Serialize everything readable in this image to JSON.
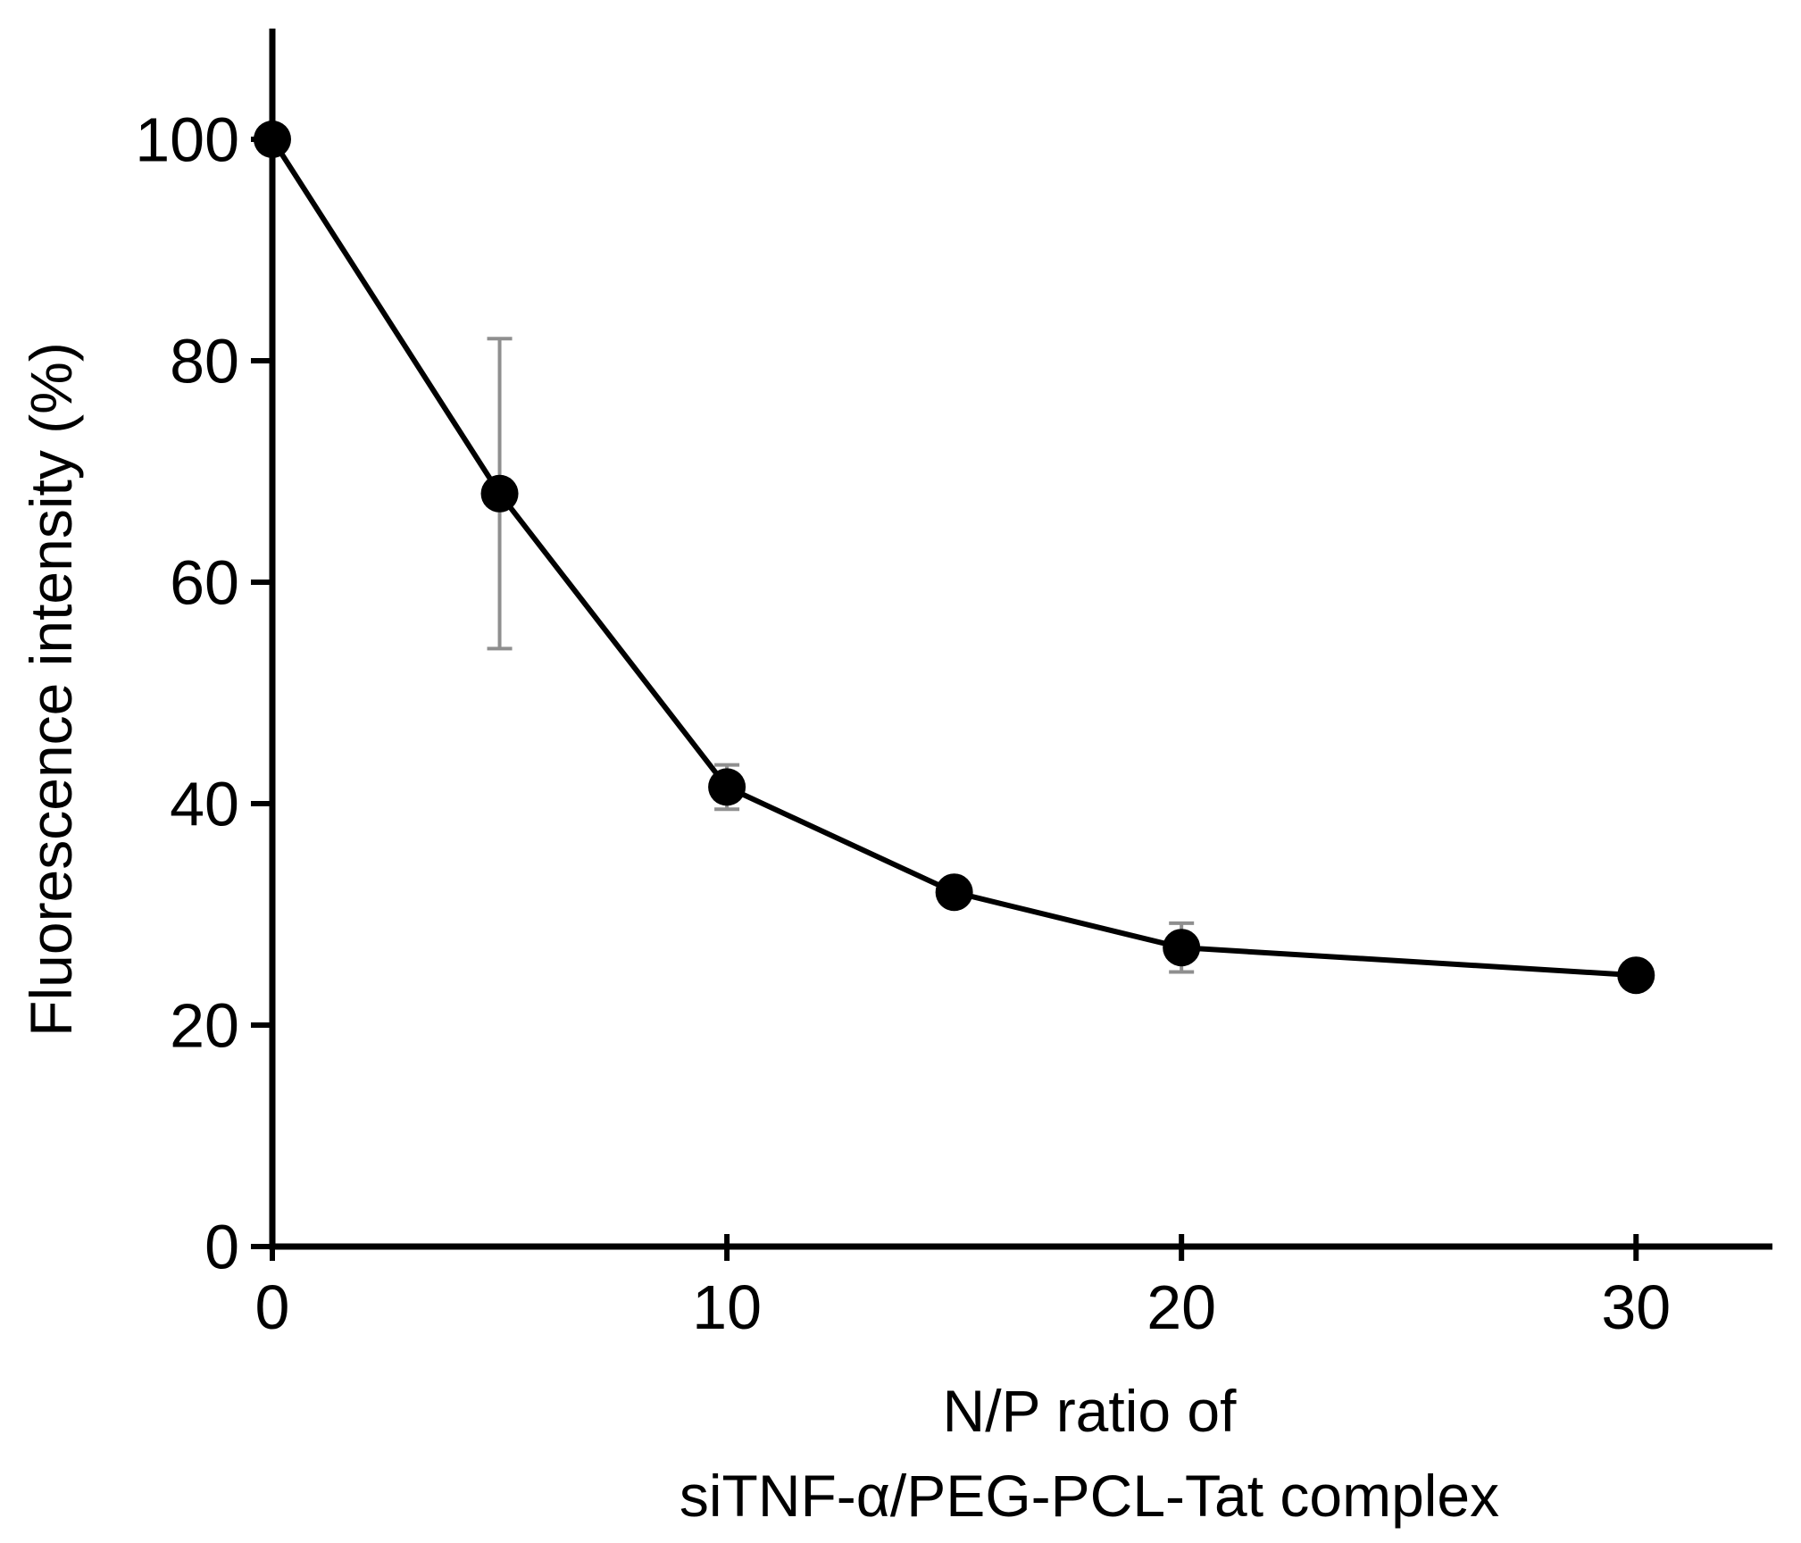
{
  "chart_data": {
    "type": "line",
    "title": "",
    "xlabel": "N/P ratio of siTNF-α/PEG-PCL-Tat complex",
    "xlabel_line1": "N/P ratio of",
    "xlabel_line2": "siTNF-α/PEG-PCL-Tat complex",
    "ylabel": "Fluorescence intensity (%)",
    "x": [
      0,
      5,
      10,
      15,
      20,
      30
    ],
    "y": [
      100,
      68,
      41.5,
      32,
      27,
      24.5
    ],
    "y_err": [
      0,
      14,
      2,
      0,
      2.2,
      0
    ],
    "x_ticks": [
      0,
      10,
      20,
      30
    ],
    "y_ticks": [
      0,
      20,
      40,
      60,
      80,
      100
    ],
    "xlim": [
      0,
      33
    ],
    "ylim": [
      0,
      110
    ],
    "grid": false,
    "legend": null,
    "marker": "filled-circle",
    "series_name": "siTNF-α/PEG-PCL-Tat complex fluorescence",
    "colors": {
      "line": "#000000",
      "marker": "#000000",
      "axis": "#000000",
      "error_bar": "#8f8f8f",
      "text": "#000000",
      "background": "#ffffff"
    }
  }
}
